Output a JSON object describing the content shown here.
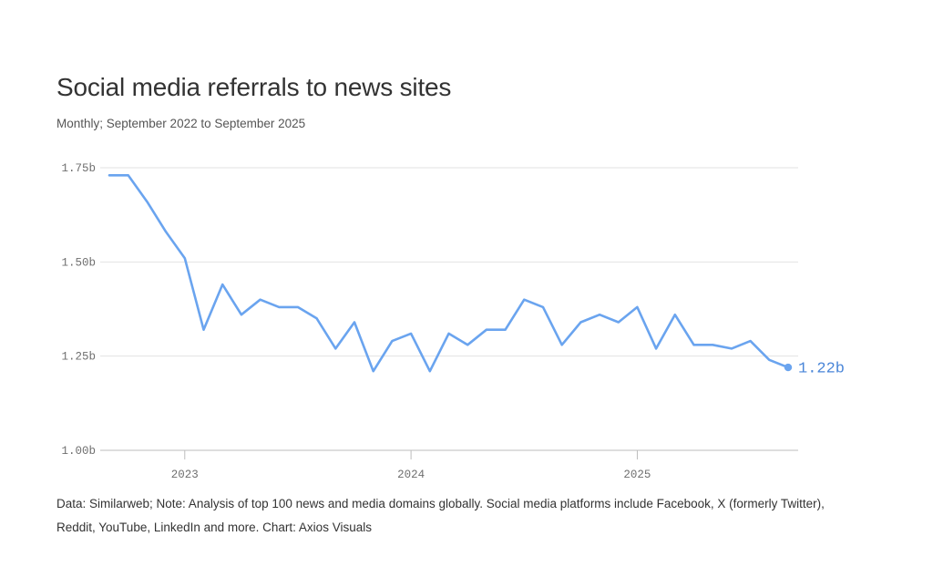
{
  "title": "Social media referrals to news sites",
  "subtitle": "Monthly; September 2022 to September 2025",
  "footnote": "Data: Similarweb; Note: Analysis of top 100 news and media domains globally. Social media platforms include Facebook, X (formerly Twitter), Reddit, YouTube, LinkedIn and more. Chart: Axios Visuals",
  "colors": {
    "line": "#6aa4ef",
    "end_label": "#4a86d8",
    "grid": "#e2e2e2",
    "axis": "#bdbdbd"
  },
  "chart_data": {
    "type": "line",
    "title": "Social media referrals to news sites",
    "subtitle": "Monthly; September 2022 to September 2025",
    "unit": "billions",
    "ylim": [
      1.0,
      1.75
    ],
    "yticks": [
      1.0,
      1.25,
      1.5,
      1.75
    ],
    "ytick_labels": [
      "1.00b",
      "1.25b",
      "1.50b",
      "1.75b"
    ],
    "xticks": [
      "2023-01",
      "2024-01",
      "2025-01"
    ],
    "xtick_labels": [
      "2023",
      "2024",
      "2025"
    ],
    "grid": "horizontal",
    "series": [
      {
        "x": [
          "2022-09",
          "2022-10",
          "2022-11",
          "2022-12",
          "2023-01",
          "2023-02",
          "2023-03",
          "2023-04",
          "2023-05",
          "2023-06",
          "2023-07",
          "2023-08",
          "2023-09",
          "2023-10",
          "2023-11",
          "2023-12",
          "2024-01",
          "2024-02",
          "2024-03",
          "2024-04",
          "2024-05",
          "2024-06",
          "2024-07",
          "2024-08",
          "2024-09",
          "2024-10",
          "2024-11",
          "2024-12",
          "2025-01",
          "2025-02",
          "2025-03",
          "2025-04",
          "2025-05",
          "2025-06",
          "2025-07",
          "2025-08",
          "2025-09"
        ],
        "values": [
          1.73,
          1.73,
          1.66,
          1.58,
          1.51,
          1.32,
          1.44,
          1.36,
          1.4,
          1.38,
          1.38,
          1.35,
          1.27,
          1.34,
          1.21,
          1.29,
          1.31,
          1.21,
          1.31,
          1.28,
          1.32,
          1.32,
          1.4,
          1.38,
          1.28,
          1.34,
          1.36,
          1.34,
          1.38,
          1.27,
          1.36,
          1.28,
          1.28,
          1.27,
          1.29,
          1.24,
          1.22
        ]
      }
    ],
    "end_label": "1.22b"
  }
}
